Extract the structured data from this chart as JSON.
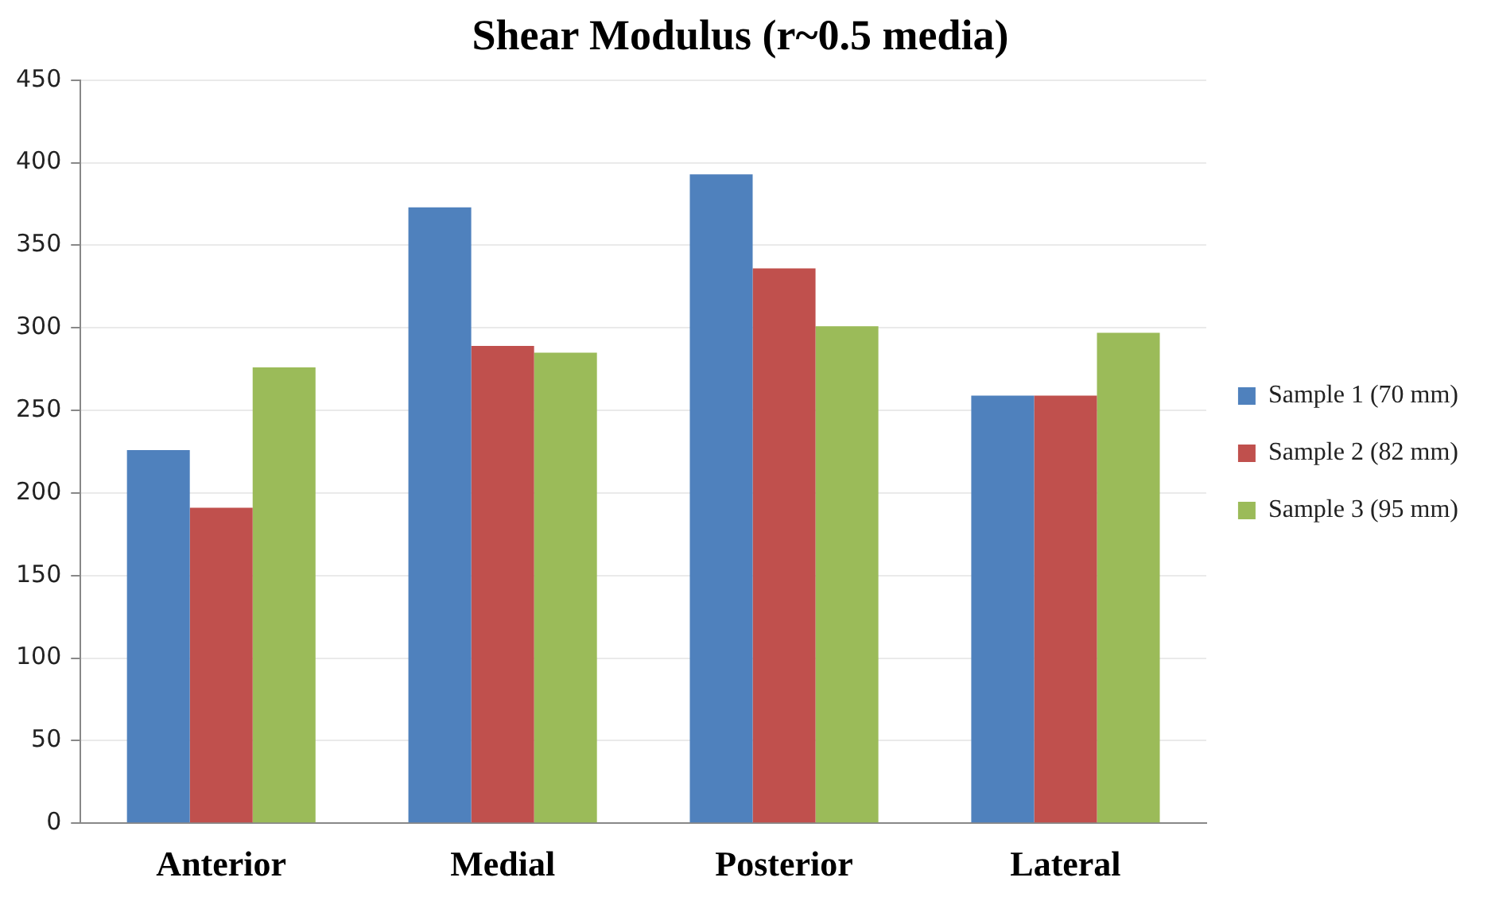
{
  "chart_data": {
    "type": "bar",
    "title": "Shear Modulus (r~0.5 media)",
    "categories": [
      "Anterior",
      "Medial",
      "Posterior",
      "Lateral"
    ],
    "series": [
      {
        "name": "Sample 1 (70 mm)",
        "color": "#4f81bd",
        "values": [
          226,
          373,
          393,
          259
        ]
      },
      {
        "name": "Sample 2 (82 mm)",
        "color": "#c0504d",
        "values": [
          191,
          289,
          336,
          259
        ]
      },
      {
        "name": "Sample 3 (95 mm)",
        "color": "#9bbb59",
        "values": [
          276,
          285,
          301,
          297
        ]
      }
    ],
    "ylim": [
      0,
      450
    ],
    "yticks": [
      0,
      50,
      100,
      150,
      200,
      250,
      300,
      350,
      400,
      450
    ],
    "grid": "y",
    "legend": "right"
  }
}
